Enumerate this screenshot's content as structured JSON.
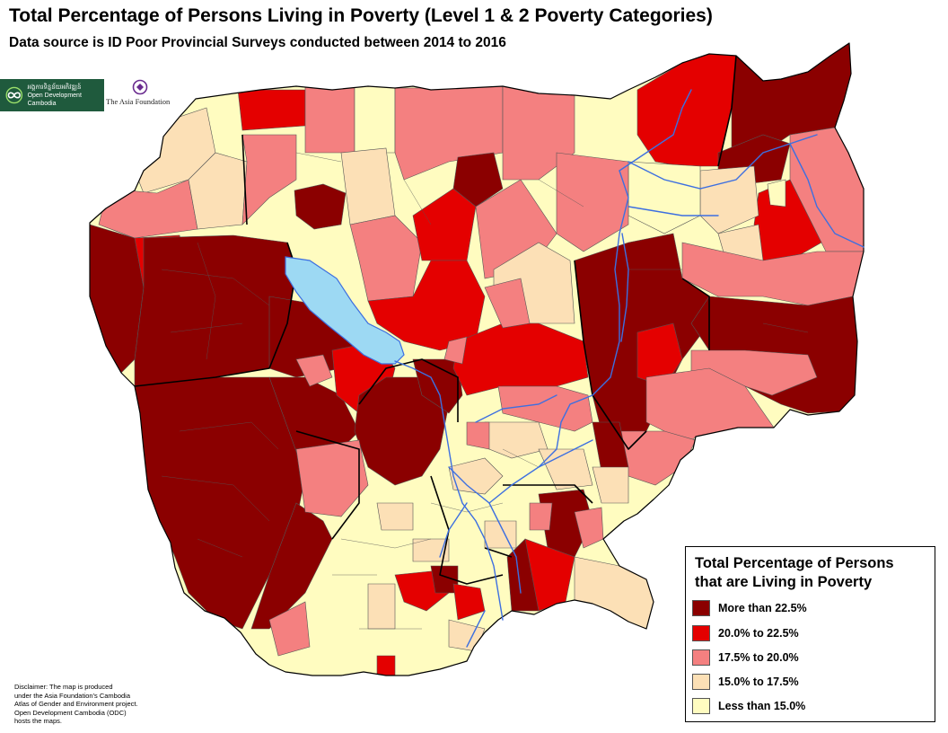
{
  "header": {
    "title": "Total Percentage of Persons Living in Poverty  (Level 1 & 2 Poverty Categories)",
    "subtitle": "Data source is ID Poor Provincial Surveys conducted between 2014 to 2016"
  },
  "logos": {
    "odc_text_1": "អង្គការទិន្នន័យអភិវឌ្ឍន៍",
    "odc_text_2": "Open Development Cambodia",
    "taf_text": "The Asia Foundation"
  },
  "legend": {
    "title_line1": "Total Percentage of Persons",
    "title_line2": "that are Living in Poverty",
    "items": [
      {
        "label": "More than 22.5%",
        "color": "#8b0000"
      },
      {
        "label": "20.0%  to 22.5%",
        "color": "#e40000"
      },
      {
        "label": "17.5%  to 20.0%",
        "color": "#f48080"
      },
      {
        "label": "15.0%  to 17.5%",
        "color": "#fce0b6"
      },
      {
        "label": "Less than 15.0%",
        "color": "#fffcc0"
      }
    ]
  },
  "disclaimer": {
    "line1": "Disclaimer: The map is produced",
    "line2": "under the Asia Foundation's Cambodia",
    "line3": "Atlas of Gender and Environment project.",
    "line4": "Open Development Cambodia (ODC)",
    "line5": "hosts the maps."
  },
  "map_colors": {
    "lake": "#9dd9f3",
    "river": "#3d6fe0",
    "district_border": "#555555",
    "province_border": "#000000"
  }
}
